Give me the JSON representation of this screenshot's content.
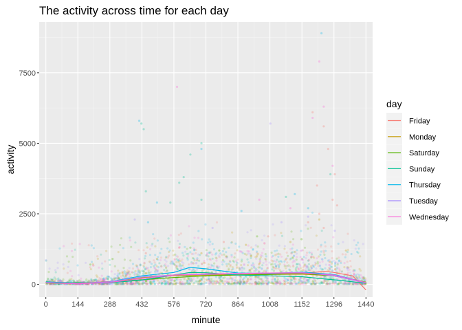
{
  "chart_data": {
    "type": "scatter",
    "title": "The activity across time for each day",
    "xlabel": "minute",
    "ylabel": "activity",
    "xlim": [
      -30,
      1470
    ],
    "ylim": [
      -450,
      9300
    ],
    "x_ticks": [
      "0",
      "144",
      "288",
      "432",
      "576",
      "720",
      "864",
      "1008",
      "1152",
      "1296",
      "1440"
    ],
    "y_ticks": [
      "0",
      "2500",
      "5000",
      "7500"
    ],
    "x_tick_values": [
      0,
      144,
      288,
      432,
      576,
      720,
      864,
      1008,
      1152,
      1296,
      1440
    ],
    "y_tick_values": [
      0,
      2500,
      5000,
      7500
    ],
    "grid": true,
    "legend_title": "day",
    "legend_position": "right",
    "series": [
      {
        "name": "Friday",
        "color": "#F8766D",
        "smooth": [
          [
            0,
            60
          ],
          [
            144,
            30
          ],
          [
            288,
            100
          ],
          [
            432,
            250
          ],
          [
            576,
            330
          ],
          [
            720,
            360
          ],
          [
            864,
            330
          ],
          [
            1008,
            370
          ],
          [
            1152,
            390
          ],
          [
            1260,
            460
          ],
          [
            1296,
            420
          ],
          [
            1380,
            300
          ],
          [
            1440,
            -200
          ]
        ],
        "points": [
          [
            1200,
            6100
          ],
          [
            1250,
            5600
          ],
          [
            1270,
            4800
          ],
          [
            1300,
            3900
          ],
          [
            1290,
            3000
          ],
          [
            1230,
            2500
          ],
          [
            1180,
            2200
          ],
          [
            1310,
            2800
          ],
          [
            1250,
            2000
          ],
          [
            1220,
            3500
          ],
          [
            800,
            1500
          ],
          [
            600,
            1300
          ],
          [
            450,
            1100
          ],
          [
            1000,
            1700
          ]
        ]
      },
      {
        "name": "Monday",
        "color": "#C49A00",
        "smooth": [
          [
            0,
            50
          ],
          [
            144,
            20
          ],
          [
            288,
            80
          ],
          [
            432,
            240
          ],
          [
            576,
            310
          ],
          [
            720,
            330
          ],
          [
            864,
            340
          ],
          [
            1008,
            350
          ],
          [
            1152,
            360
          ],
          [
            1296,
            300
          ],
          [
            1440,
            80
          ]
        ],
        "points": [
          [
            1230,
            2300
          ],
          [
            900,
            1400
          ],
          [
            700,
            1100
          ],
          [
            500,
            900
          ],
          [
            1100,
            1500
          ],
          [
            1350,
            1200
          ]
        ]
      },
      {
        "name": "Saturday",
        "color": "#53B400",
        "smooth": [
          [
            0,
            70
          ],
          [
            144,
            50
          ],
          [
            288,
            70
          ],
          [
            432,
            160
          ],
          [
            576,
            240
          ],
          [
            720,
            300
          ],
          [
            864,
            330
          ],
          [
            1008,
            350
          ],
          [
            1152,
            380
          ],
          [
            1296,
            300
          ],
          [
            1440,
            60
          ]
        ],
        "points": [
          [
            300,
            900
          ],
          [
            650,
            1300
          ],
          [
            950,
            1700
          ],
          [
            1150,
            1600
          ],
          [
            200,
            700
          ],
          [
            780,
            1200
          ]
        ]
      },
      {
        "name": "Sunday",
        "color": "#00C094",
        "smooth": [
          [
            0,
            90
          ],
          [
            144,
            40
          ],
          [
            288,
            60
          ],
          [
            432,
            150
          ],
          [
            576,
            330
          ],
          [
            648,
            420
          ],
          [
            720,
            410
          ],
          [
            864,
            330
          ],
          [
            1008,
            300
          ],
          [
            1152,
            270
          ],
          [
            1296,
            160
          ],
          [
            1440,
            40
          ]
        ],
        "points": [
          [
            430,
            5700
          ],
          [
            440,
            5500
          ],
          [
            600,
            3600
          ],
          [
            650,
            4600
          ],
          [
            620,
            3800
          ],
          [
            700,
            5000
          ],
          [
            560,
            2900
          ],
          [
            450,
            3300
          ],
          [
            1280,
            3900
          ],
          [
            1080,
            3100
          ],
          [
            700,
            3000
          ]
        ]
      },
      {
        "name": "Thursday",
        "color": "#00B6EB",
        "smooth": [
          [
            0,
            80
          ],
          [
            144,
            30
          ],
          [
            288,
            90
          ],
          [
            432,
            300
          ],
          [
            576,
            420
          ],
          [
            648,
            600
          ],
          [
            720,
            550
          ],
          [
            864,
            400
          ],
          [
            1008,
            380
          ],
          [
            1152,
            430
          ],
          [
            1296,
            350
          ],
          [
            1440,
            60
          ]
        ],
        "points": [
          [
            420,
            5800
          ],
          [
            1240,
            8900
          ],
          [
            700,
            4800
          ],
          [
            500,
            2900
          ],
          [
            880,
            2600
          ],
          [
            1120,
            3200
          ],
          [
            1180,
            2700
          ],
          [
            460,
            2200
          ]
        ]
      },
      {
        "name": "Tuesday",
        "color": "#A58AFF",
        "smooth": [
          [
            0,
            60
          ],
          [
            144,
            20
          ],
          [
            288,
            90
          ],
          [
            432,
            260
          ],
          [
            576,
            330
          ],
          [
            720,
            350
          ],
          [
            864,
            380
          ],
          [
            1008,
            400
          ],
          [
            1152,
            420
          ],
          [
            1296,
            300
          ],
          [
            1440,
            50
          ]
        ],
        "points": [
          [
            1010,
            5700
          ],
          [
            400,
            2300
          ],
          [
            750,
            2000
          ],
          [
            1060,
            2200
          ],
          [
            1180,
            2400
          ],
          [
            1300,
            1900
          ]
        ]
      },
      {
        "name": "Wednesday",
        "color": "#FB61D7",
        "smooth": [
          [
            0,
            60
          ],
          [
            144,
            20
          ],
          [
            288,
            70
          ],
          [
            432,
            200
          ],
          [
            576,
            330
          ],
          [
            720,
            370
          ],
          [
            864,
            380
          ],
          [
            1008,
            400
          ],
          [
            1152,
            400
          ],
          [
            1296,
            330
          ],
          [
            1440,
            60
          ]
        ],
        "points": [
          [
            1230,
            7900
          ],
          [
            1200,
            5900
          ],
          [
            590,
            7000
          ],
          [
            1290,
            4200
          ],
          [
            1250,
            6300
          ],
          [
            960,
            3000
          ],
          [
            1100,
            2700
          ]
        ]
      }
    ]
  }
}
